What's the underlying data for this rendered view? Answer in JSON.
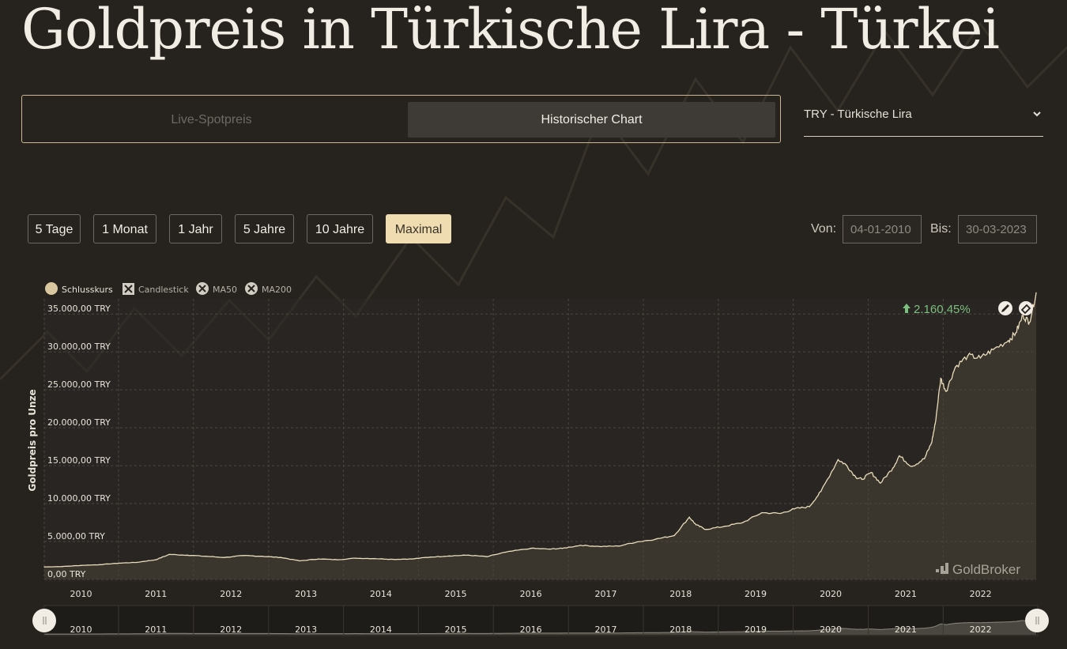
{
  "page_title": "Goldpreis in Türkische Lira - Türkei",
  "mode_tabs": [
    {
      "label": "Live-Spotpreis",
      "active": false
    },
    {
      "label": "Historischer Chart",
      "active": true
    }
  ],
  "currency_select": {
    "value": "TRY - Türkische Lira"
  },
  "range_buttons": [
    {
      "label": "5 Tage",
      "active": false
    },
    {
      "label": "1 Monat",
      "active": false
    },
    {
      "label": "1 Jahr",
      "active": false
    },
    {
      "label": "5 Jahre",
      "active": false
    },
    {
      "label": "10 Jahre",
      "active": false
    },
    {
      "label": "Maximal",
      "active": true
    }
  ],
  "date_range": {
    "from_label": "Von:",
    "from_value": "04-01-2010",
    "to_label": "Bis:",
    "to_value": "30-03-2023"
  },
  "legend": [
    {
      "label": "Schlusskurs",
      "enabled": true,
      "icon": "circle"
    },
    {
      "label": "Candlestick",
      "enabled": false,
      "icon": "x-box"
    },
    {
      "label": "MA50",
      "enabled": false,
      "icon": "x-circle"
    },
    {
      "label": "MA200",
      "enabled": false,
      "icon": "x-circle"
    }
  ],
  "change_badge": {
    "text": "2.160,45%",
    "icon": "arrow-up-icon",
    "color": "#7bbf7e"
  },
  "toolbar_icons": [
    "pencil-icon",
    "eraser-icon"
  ],
  "watermark": "GoldBroker",
  "colors": {
    "accent": "#efdcb1",
    "line": "#e9dcba",
    "background": "#26231f"
  },
  "chart_data": {
    "type": "area",
    "ylabel": "Goldpreis pro Unze",
    "y_ticks": [
      "0,00 TRY",
      "5.000,00 TRY",
      "10.000,00 TRY",
      "15.000,00 TRY",
      "20.000,00 TRY",
      "25.000,00 TRY",
      "30.000,00 TRY",
      "35.000,00 TRY"
    ],
    "y_tick_values": [
      0,
      5000,
      10000,
      15000,
      20000,
      25000,
      30000,
      35000
    ],
    "x_ticks": [
      "2010",
      "2011",
      "2012",
      "2013",
      "2014",
      "2015",
      "2016",
      "2017",
      "2018",
      "2019",
      "2020",
      "2021",
      "2022"
    ],
    "xlim": [
      "2010-01-04",
      "2023-03-30"
    ],
    "ylim": [
      0,
      37000
    ],
    "grid": true,
    "legend_position": "top-left",
    "navigator": true,
    "series": [
      {
        "name": "Schlusskurs",
        "points": [
          [
            "2010-01-04",
            1650
          ],
          [
            "2010-04-01",
            1700
          ],
          [
            "2010-07-01",
            1850
          ],
          [
            "2010-10-01",
            1950
          ],
          [
            "2011-01-03",
            2150
          ],
          [
            "2011-04-01",
            2250
          ],
          [
            "2011-07-01",
            2600
          ],
          [
            "2011-09-06",
            3300
          ],
          [
            "2011-12-01",
            3200
          ],
          [
            "2012-03-01",
            3050
          ],
          [
            "2012-06-01",
            2900
          ],
          [
            "2012-09-01",
            3150
          ],
          [
            "2012-12-01",
            3050
          ],
          [
            "2013-03-01",
            2900
          ],
          [
            "2013-06-01",
            2450
          ],
          [
            "2013-09-01",
            2700
          ],
          [
            "2013-12-01",
            2600
          ],
          [
            "2014-03-01",
            2800
          ],
          [
            "2014-06-01",
            2750
          ],
          [
            "2014-09-01",
            2650
          ],
          [
            "2014-12-01",
            2700
          ],
          [
            "2015-03-01",
            2950
          ],
          [
            "2015-06-01",
            3100
          ],
          [
            "2015-09-01",
            3200
          ],
          [
            "2015-12-01",
            3000
          ],
          [
            "2016-03-01",
            3600
          ],
          [
            "2016-07-01",
            4100
          ],
          [
            "2016-10-01",
            4000
          ],
          [
            "2016-12-01",
            4100
          ],
          [
            "2017-03-01",
            4500
          ],
          [
            "2017-06-01",
            4350
          ],
          [
            "2017-09-01",
            4400
          ],
          [
            "2017-12-01",
            4950
          ],
          [
            "2018-03-01",
            5300
          ],
          [
            "2018-06-01",
            5800
          ],
          [
            "2018-08-13",
            8200
          ],
          [
            "2018-09-15",
            7200
          ],
          [
            "2018-11-01",
            6600
          ],
          [
            "2019-02-01",
            7000
          ],
          [
            "2019-05-01",
            7500
          ],
          [
            "2019-08-01",
            8800
          ],
          [
            "2019-11-01",
            8700
          ],
          [
            "2020-01-06",
            9300
          ],
          [
            "2020-03-20",
            9600
          ],
          [
            "2020-05-15",
            11600
          ],
          [
            "2020-08-07",
            15800
          ],
          [
            "2020-09-15",
            15100
          ],
          [
            "2020-11-01",
            13500
          ],
          [
            "2020-12-01",
            13200
          ],
          [
            "2021-01-15",
            14100
          ],
          [
            "2021-03-01",
            12700
          ],
          [
            "2021-05-01",
            14700
          ],
          [
            "2021-06-01",
            16300
          ],
          [
            "2021-08-01",
            14900
          ],
          [
            "2021-10-01",
            15900
          ],
          [
            "2021-11-05",
            18000
          ],
          [
            "2021-11-23",
            20500
          ],
          [
            "2021-12-20",
            26500
          ],
          [
            "2022-01-15",
            24800
          ],
          [
            "2022-03-01",
            28000
          ],
          [
            "2022-05-01",
            29500
          ],
          [
            "2022-07-01",
            29200
          ],
          [
            "2022-09-01",
            30300
          ],
          [
            "2022-11-15",
            31500
          ],
          [
            "2022-12-20",
            32500
          ],
          [
            "2023-01-25",
            34800
          ],
          [
            "2023-02-25",
            33900
          ],
          [
            "2023-03-30",
            37800
          ]
        ]
      }
    ]
  }
}
